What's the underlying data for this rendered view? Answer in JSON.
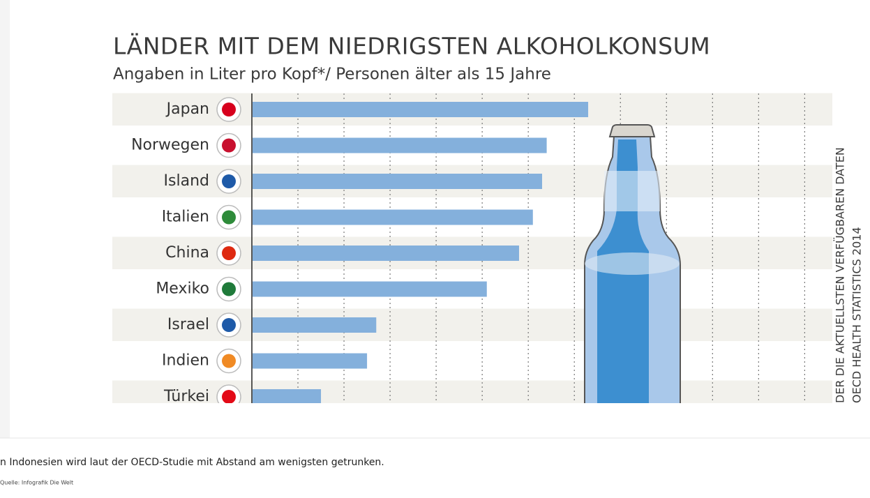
{
  "chart_data": {
    "type": "bar",
    "orientation": "horizontal",
    "title": "LÄNDER MIT DEM NIEDRIGSTEN ALKOHOLKONSUM",
    "subtitle": "Angaben in Liter pro Kopf*/ Personen älter als 15 Jahre",
    "categories": [
      "Japan",
      "Norwegen",
      "Island",
      "Italien",
      "China",
      "Mexiko",
      "Israel",
      "Indien",
      "Türkei"
    ],
    "values": [
      7.3,
      6.4,
      6.3,
      6.1,
      5.8,
      5.1,
      2.7,
      2.5,
      1.5
    ],
    "color": "#84b0dc",
    "xlim": [
      0,
      12.6
    ],
    "xticks": [
      1,
      2,
      3,
      4,
      5,
      6,
      7,
      8,
      9,
      10,
      11,
      12
    ],
    "grid": true,
    "annotations": [
      "DER DIE AKTUELLSTEN VERFÜGBAREN DATEN",
      "OECD HEALTH STATISTICS 2014"
    ]
  },
  "caption": "n Indonesien wird laut der OECD-Studie mit Abstand am wenigsten getrunken.",
  "credit": "Quelle: Infografik Die Welt"
}
